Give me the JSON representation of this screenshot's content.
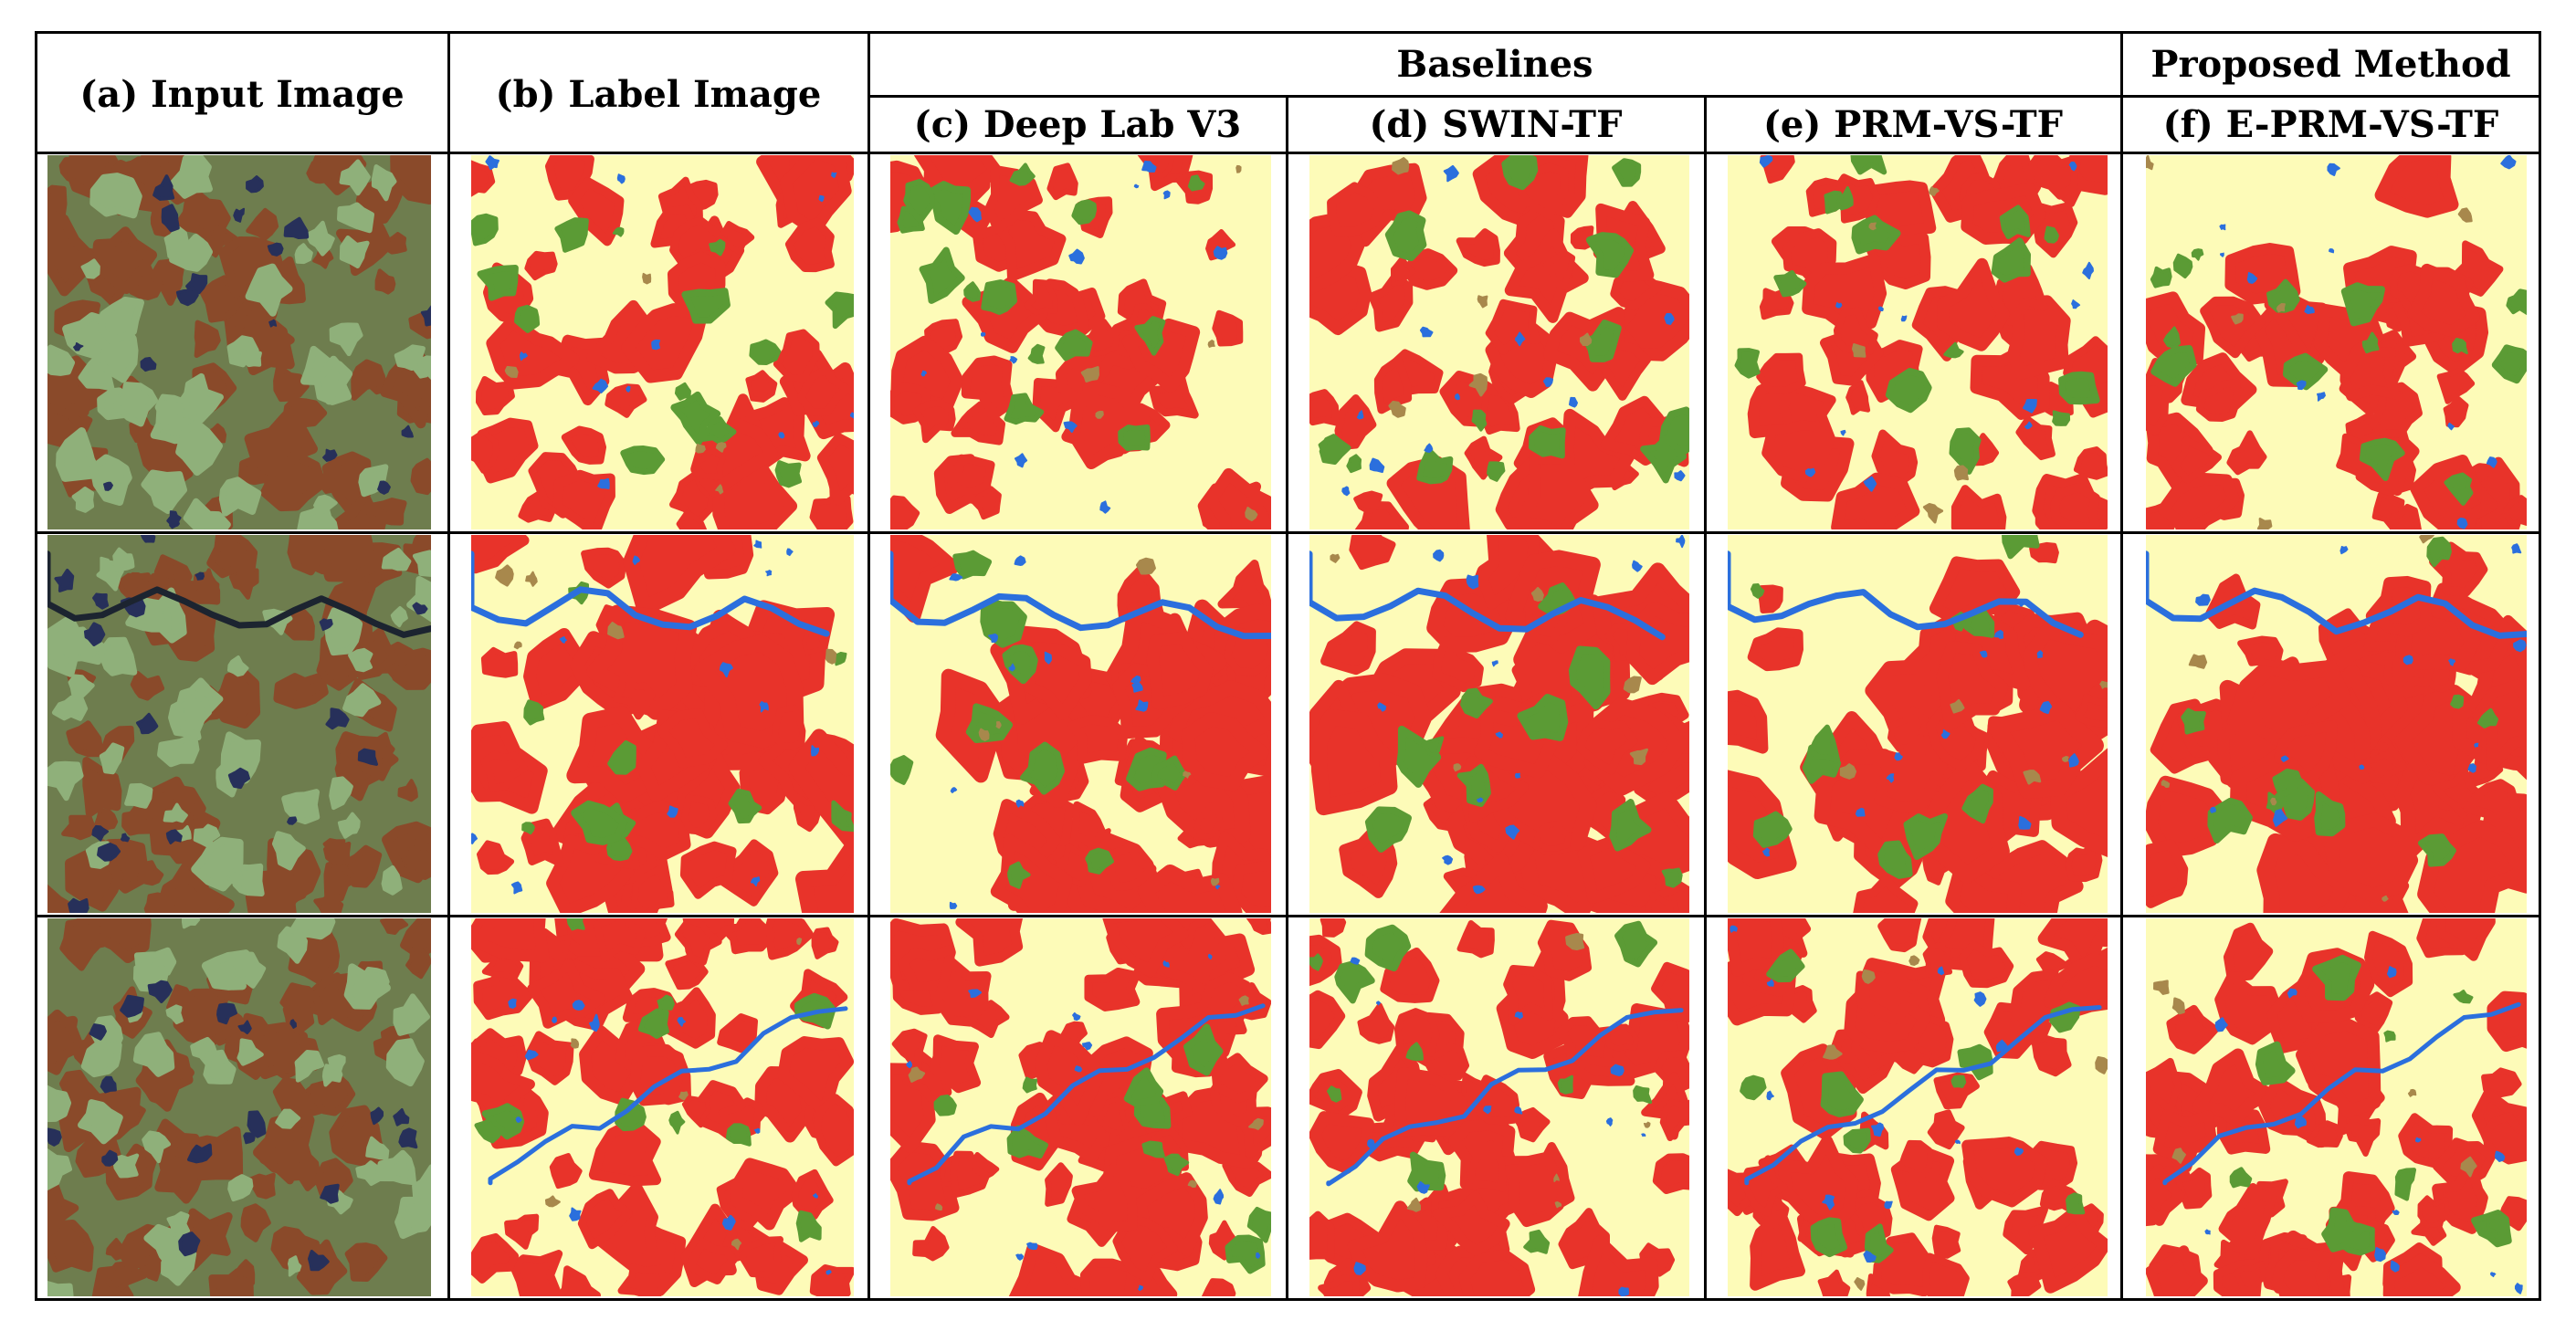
{
  "table": {
    "header": {
      "col_a": "(a)  Input Image",
      "col_b": "(b)  Label Image",
      "group_baselines": "Baselines",
      "group_proposed": "Proposed Method",
      "col_c": "(c)  Deep Lab V3",
      "col_d": "(d)  SWIN-TF",
      "col_e": "(e)  PRM-VS-TF",
      "col_f": "(f)  E-PRM-VS-TF"
    },
    "rows": 3,
    "columns": [
      "Input Image",
      "Label Image",
      "Deep Lab V3",
      "SWIN-TF",
      "PRM-VS-TF",
      "E-PRM-VS-TF"
    ]
  },
  "colors": {
    "background_class": "#fdfbb8",
    "urban_class": "#e8332a",
    "vegetation_class": "#5b9b35",
    "water_class": "#2b6fdd",
    "bare_class": "#a8884c",
    "satellite_base": "#6e7d4e",
    "satellite_red": "#8a4a2a",
    "satellite_green": "#8fb07a",
    "satellite_dark": "#27305a",
    "grid_line": "#000000"
  }
}
